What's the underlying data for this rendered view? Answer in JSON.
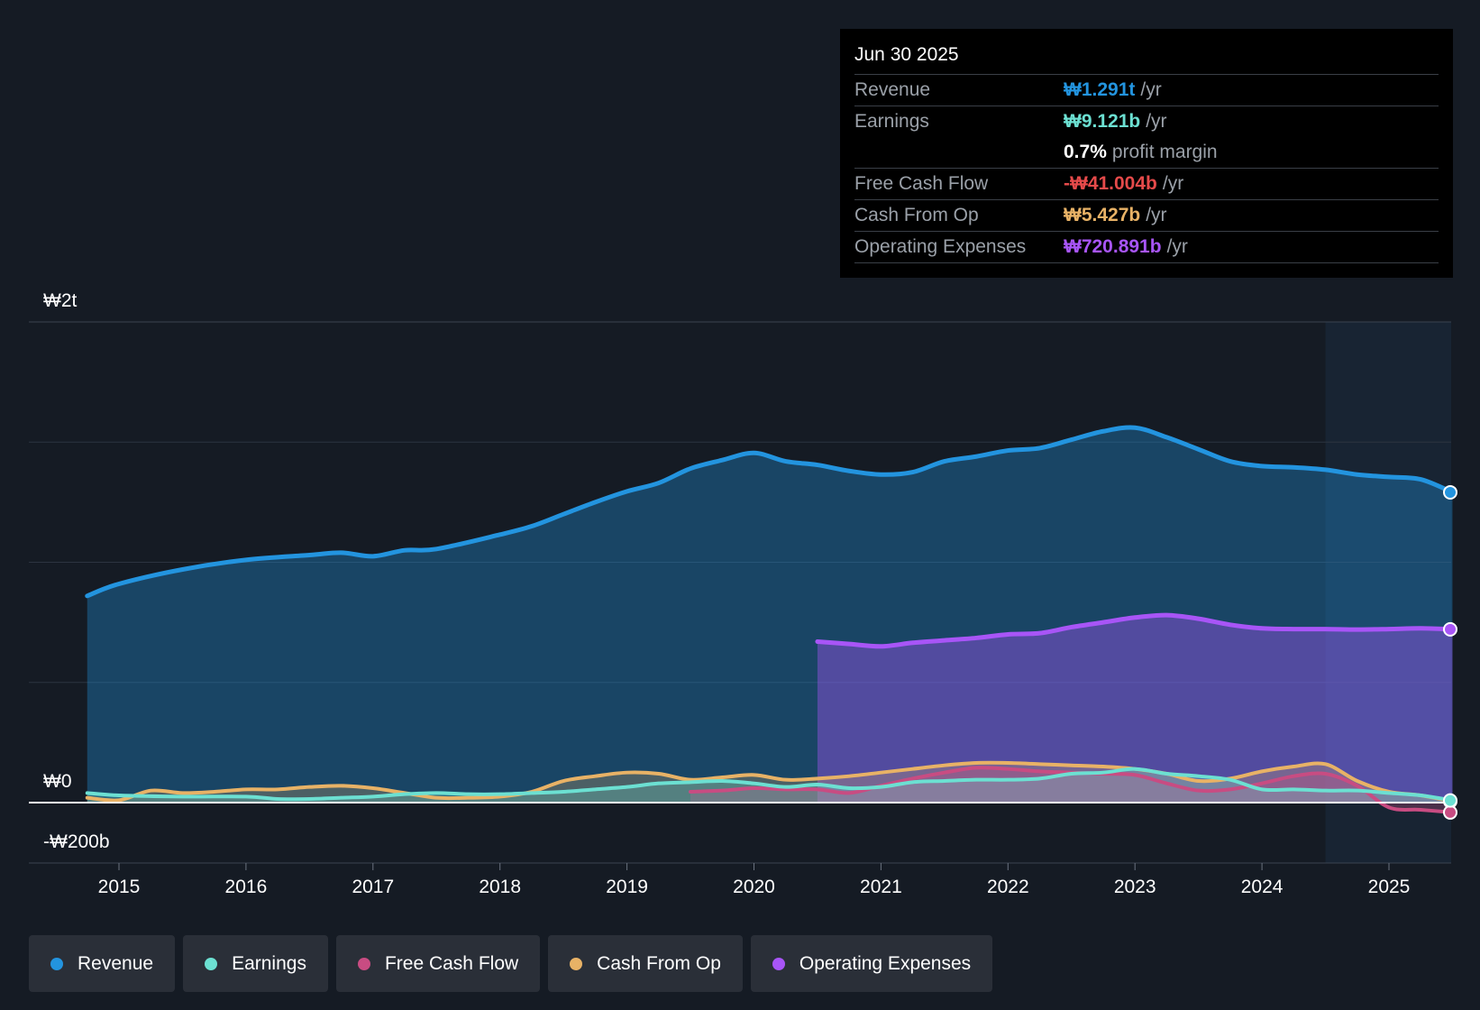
{
  "tooltip": {
    "date": "Jun 30 2025",
    "rows": [
      {
        "label": "Revenue",
        "value": "₩1.291t",
        "unit": "/yr",
        "color": "#2394df"
      },
      {
        "label": "Earnings",
        "value": "₩9.121b",
        "unit": "/yr",
        "color": "#6ce0d2"
      },
      {
        "label": "",
        "value": "0.7%",
        "unit": "profit margin",
        "color": "#ffffff"
      },
      {
        "label": "Free Cash Flow",
        "value": "-₩41.004b",
        "unit": "/yr",
        "color": "#e54a4a"
      },
      {
        "label": "Cash From Op",
        "value": "₩5.427b",
        "unit": "/yr",
        "color": "#e8b266"
      },
      {
        "label": "Operating Expenses",
        "value": "₩720.891b",
        "unit": "/yr",
        "color": "#a855f7"
      }
    ]
  },
  "legend": [
    {
      "label": "Revenue",
      "color": "#2394df"
    },
    {
      "label": "Earnings",
      "color": "#6ce0d2"
    },
    {
      "label": "Free Cash Flow",
      "color": "#c84c82"
    },
    {
      "label": "Cash From Op",
      "color": "#e8b266"
    },
    {
      "label": "Operating Expenses",
      "color": "#a855f7"
    }
  ],
  "chart_data": {
    "type": "area",
    "y_label_top": "₩2t",
    "y_label_zero": "₩0",
    "y_label_bottom": "-₩200b",
    "ylim": [
      -200,
      2000
    ],
    "xlim": [
      2014.75,
      2025.5
    ],
    "x_ticks": [
      "2015",
      "2016",
      "2017",
      "2018",
      "2019",
      "2020",
      "2021",
      "2022",
      "2023",
      "2024",
      "2025"
    ],
    "x_tick_values": [
      2015,
      2016,
      2017,
      2018,
      2019,
      2020,
      2021,
      2022,
      2023,
      2024,
      2025
    ],
    "forecast_shade_start": 2024.5,
    "series": [
      {
        "name": "Revenue",
        "color": "#2394df",
        "area": true,
        "data": [
          [
            2014.75,
            860
          ],
          [
            2015.0,
            910
          ],
          [
            2015.5,
            970
          ],
          [
            2016.0,
            1010
          ],
          [
            2016.5,
            1030
          ],
          [
            2016.75,
            1040
          ],
          [
            2017.0,
            1025
          ],
          [
            2017.25,
            1050
          ],
          [
            2017.5,
            1055
          ],
          [
            2018.0,
            1115
          ],
          [
            2018.25,
            1150
          ],
          [
            2018.5,
            1200
          ],
          [
            2018.75,
            1250
          ],
          [
            2019.0,
            1295
          ],
          [
            2019.25,
            1330
          ],
          [
            2019.5,
            1390
          ],
          [
            2019.75,
            1425
          ],
          [
            2020.0,
            1455
          ],
          [
            2020.25,
            1420
          ],
          [
            2020.5,
            1405
          ],
          [
            2020.75,
            1380
          ],
          [
            2021.0,
            1365
          ],
          [
            2021.25,
            1375
          ],
          [
            2021.5,
            1420
          ],
          [
            2021.75,
            1440
          ],
          [
            2022.0,
            1465
          ],
          [
            2022.25,
            1475
          ],
          [
            2022.5,
            1510
          ],
          [
            2022.75,
            1545
          ],
          [
            2023.0,
            1560
          ],
          [
            2023.25,
            1520
          ],
          [
            2023.5,
            1470
          ],
          [
            2023.75,
            1420
          ],
          [
            2024.0,
            1400
          ],
          [
            2024.25,
            1395
          ],
          [
            2024.5,
            1385
          ],
          [
            2024.75,
            1365
          ],
          [
            2025.0,
            1355
          ],
          [
            2025.25,
            1345
          ],
          [
            2025.5,
            1291
          ]
        ]
      },
      {
        "name": "Operating Expenses",
        "color": "#a855f7",
        "area": true,
        "data": [
          [
            2020.5,
            670
          ],
          [
            2020.75,
            660
          ],
          [
            2021.0,
            650
          ],
          [
            2021.25,
            665
          ],
          [
            2021.5,
            675
          ],
          [
            2021.75,
            685
          ],
          [
            2022.0,
            700
          ],
          [
            2022.25,
            705
          ],
          [
            2022.5,
            730
          ],
          [
            2022.75,
            750
          ],
          [
            2023.0,
            770
          ],
          [
            2023.25,
            780
          ],
          [
            2023.5,
            765
          ],
          [
            2023.75,
            740
          ],
          [
            2024.0,
            725
          ],
          [
            2024.25,
            722
          ],
          [
            2024.5,
            722
          ],
          [
            2024.75,
            720
          ],
          [
            2025.0,
            722
          ],
          [
            2025.25,
            725
          ],
          [
            2025.5,
            721
          ]
        ]
      },
      {
        "name": "Cash From Op",
        "color": "#e8b266",
        "area": true,
        "data": [
          [
            2014.75,
            20
          ],
          [
            2015.0,
            10
          ],
          [
            2015.25,
            50
          ],
          [
            2015.5,
            40
          ],
          [
            2015.75,
            45
          ],
          [
            2016.0,
            55
          ],
          [
            2016.25,
            55
          ],
          [
            2016.5,
            65
          ],
          [
            2016.75,
            70
          ],
          [
            2017.0,
            60
          ],
          [
            2017.25,
            40
          ],
          [
            2017.5,
            20
          ],
          [
            2017.75,
            20
          ],
          [
            2018.0,
            25
          ],
          [
            2018.25,
            45
          ],
          [
            2018.5,
            90
          ],
          [
            2018.75,
            110
          ],
          [
            2019.0,
            125
          ],
          [
            2019.25,
            120
          ],
          [
            2019.5,
            95
          ],
          [
            2019.75,
            105
          ],
          [
            2020.0,
            115
          ],
          [
            2020.25,
            95
          ],
          [
            2020.5,
            100
          ],
          [
            2020.75,
            110
          ],
          [
            2021.0,
            125
          ],
          [
            2021.25,
            140
          ],
          [
            2021.5,
            155
          ],
          [
            2021.75,
            165
          ],
          [
            2022.0,
            165
          ],
          [
            2022.25,
            160
          ],
          [
            2022.5,
            155
          ],
          [
            2022.75,
            150
          ],
          [
            2023.0,
            140
          ],
          [
            2023.25,
            120
          ],
          [
            2023.5,
            90
          ],
          [
            2023.75,
            100
          ],
          [
            2024.0,
            130
          ],
          [
            2024.25,
            150
          ],
          [
            2024.5,
            160
          ],
          [
            2024.75,
            90
          ],
          [
            2025.0,
            45
          ],
          [
            2025.25,
            30
          ],
          [
            2025.5,
            5
          ]
        ]
      },
      {
        "name": "Free Cash Flow",
        "color": "#c84c82",
        "area": true,
        "data": [
          [
            2019.5,
            45
          ],
          [
            2019.75,
            50
          ],
          [
            2020.0,
            60
          ],
          [
            2020.25,
            55
          ],
          [
            2020.5,
            55
          ],
          [
            2020.75,
            40
          ],
          [
            2021.0,
            70
          ],
          [
            2021.25,
            100
          ],
          [
            2021.5,
            125
          ],
          [
            2021.75,
            145
          ],
          [
            2022.0,
            140
          ],
          [
            2022.25,
            130
          ],
          [
            2022.5,
            125
          ],
          [
            2022.75,
            120
          ],
          [
            2023.0,
            115
          ],
          [
            2023.25,
            80
          ],
          [
            2023.5,
            50
          ],
          [
            2023.75,
            55
          ],
          [
            2024.0,
            80
          ],
          [
            2024.25,
            110
          ],
          [
            2024.5,
            120
          ],
          [
            2024.75,
            70
          ],
          [
            2025.0,
            -20
          ],
          [
            2025.25,
            -30
          ],
          [
            2025.5,
            -41
          ]
        ]
      },
      {
        "name": "Earnings",
        "color": "#6ce0d2",
        "area": true,
        "data": [
          [
            2014.75,
            40
          ],
          [
            2015.0,
            30
          ],
          [
            2015.5,
            25
          ],
          [
            2016.0,
            25
          ],
          [
            2016.25,
            15
          ],
          [
            2016.5,
            15
          ],
          [
            2016.75,
            20
          ],
          [
            2017.0,
            25
          ],
          [
            2017.25,
            35
          ],
          [
            2017.5,
            40
          ],
          [
            2017.75,
            35
          ],
          [
            2018.0,
            35
          ],
          [
            2018.25,
            40
          ],
          [
            2018.5,
            45
          ],
          [
            2018.75,
            55
          ],
          [
            2019.0,
            65
          ],
          [
            2019.25,
            80
          ],
          [
            2019.5,
            85
          ],
          [
            2019.75,
            90
          ],
          [
            2020.0,
            80
          ],
          [
            2020.25,
            65
          ],
          [
            2020.5,
            75
          ],
          [
            2020.75,
            60
          ],
          [
            2021.0,
            65
          ],
          [
            2021.25,
            85
          ],
          [
            2021.5,
            90
          ],
          [
            2021.75,
            95
          ],
          [
            2022.0,
            95
          ],
          [
            2022.25,
            100
          ],
          [
            2022.5,
            120
          ],
          [
            2022.75,
            125
          ],
          [
            2023.0,
            140
          ],
          [
            2023.25,
            120
          ],
          [
            2023.5,
            110
          ],
          [
            2023.75,
            95
          ],
          [
            2024.0,
            55
          ],
          [
            2024.25,
            55
          ],
          [
            2024.5,
            50
          ],
          [
            2024.75,
            50
          ],
          [
            2025.0,
            40
          ],
          [
            2025.25,
            30
          ],
          [
            2025.5,
            9
          ]
        ]
      }
    ]
  }
}
